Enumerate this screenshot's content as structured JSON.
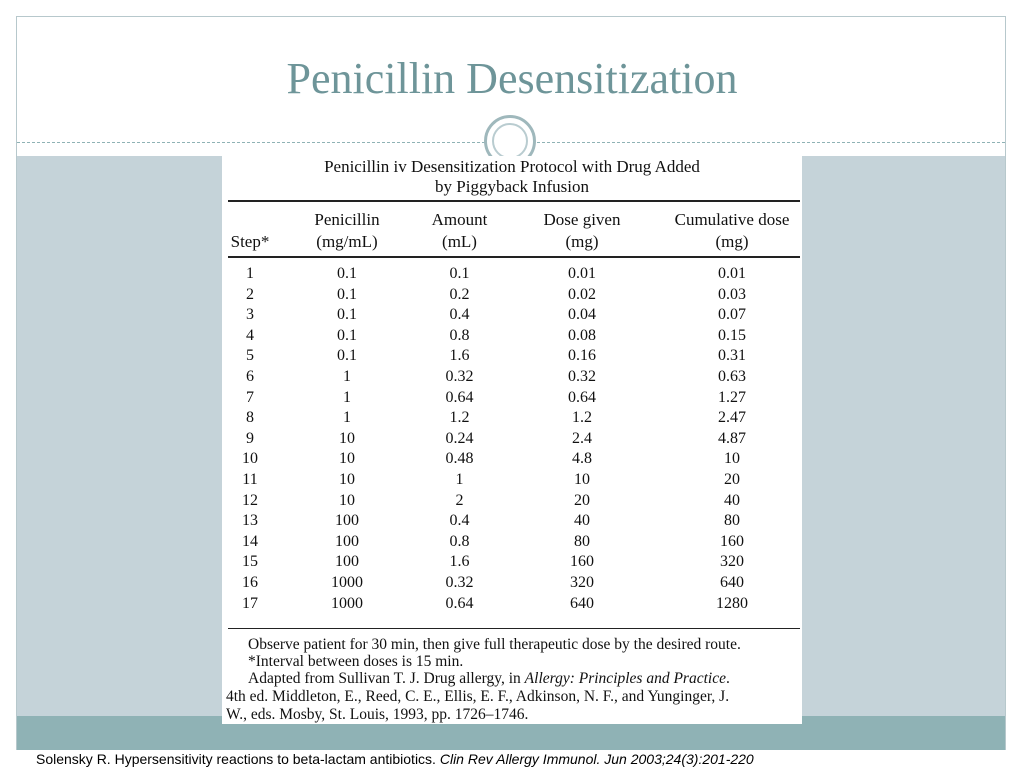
{
  "slide": {
    "title": "Penicillin Desensitization",
    "citation_plain": "Solensky R. Hypersensitivity reactions to beta-lactam antibiotics. ",
    "citation_italic": "Clin Rev Allergy Immunol. Jun 2003;24(3):201-220"
  },
  "table": {
    "title_line1": "Penicillin iv Desensitization Protocol with Drug Added",
    "title_line2": "by Piggyback Infusion",
    "headers": [
      {
        "line1": "",
        "line2": "Step*"
      },
      {
        "line1": "Penicillin",
        "line2": "(mg/mL)"
      },
      {
        "line1": "Amount",
        "line2": "(mL)"
      },
      {
        "line1": "Dose given",
        "line2": "(mg)"
      },
      {
        "line1": "Cumulative dose",
        "line2": "(mg)"
      }
    ],
    "rows": [
      [
        "1",
        "0.1",
        "0.1",
        "0.01",
        "0.01"
      ],
      [
        "2",
        "0.1",
        "0.2",
        "0.02",
        "0.03"
      ],
      [
        "3",
        "0.1",
        "0.4",
        "0.04",
        "0.07"
      ],
      [
        "4",
        "0.1",
        "0.8",
        "0.08",
        "0.15"
      ],
      [
        "5",
        "0.1",
        "1.6",
        "0.16",
        "0.31"
      ],
      [
        "6",
        "1",
        "0.32",
        "0.32",
        "0.63"
      ],
      [
        "7",
        "1",
        "0.64",
        "0.64",
        "1.27"
      ],
      [
        "8",
        "1",
        "1.2",
        "1.2",
        "2.47"
      ],
      [
        "9",
        "10",
        "0.24",
        "2.4",
        "4.87"
      ],
      [
        "10",
        "10",
        "0.48",
        "4.8",
        "10"
      ],
      [
        "11",
        "10",
        "1",
        "10",
        "20"
      ],
      [
        "12",
        "10",
        "2",
        "20",
        "40"
      ],
      [
        "13",
        "100",
        "0.4",
        "40",
        "80"
      ],
      [
        "14",
        "100",
        "0.8",
        "80",
        "160"
      ],
      [
        "15",
        "100",
        "1.6",
        "160",
        "320"
      ],
      [
        "16",
        "1000",
        "0.32",
        "320",
        "640"
      ],
      [
        "17",
        "1000",
        "0.64",
        "640",
        "1280"
      ]
    ],
    "notes": {
      "observe": "Observe patient for 30 min, then give full therapeutic dose by the desired route.",
      "interval": "*Interval between doses is 15 min.",
      "adapted_plain": "Adapted from Sullivan T. J. Drug allergy, in ",
      "adapted_italic": "Allergy: Principles and Practice",
      "adapted_end": ".",
      "line4": "4th ed. Middleton, E., Reed, C. E., Ellis, E. F., Adkinson, N. F., and Yunginger, J.",
      "line5": "W., eds. Mosby, St. Louis, 1993, pp. 1726–1746."
    }
  }
}
